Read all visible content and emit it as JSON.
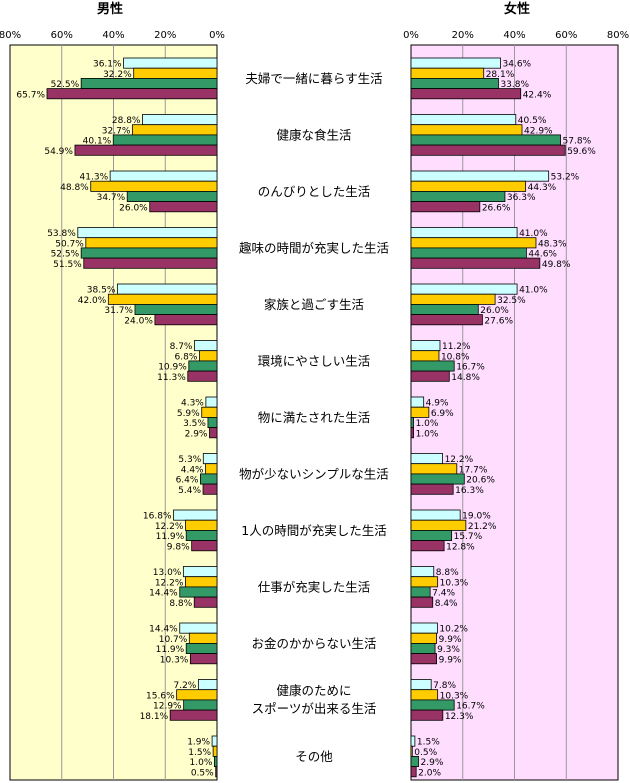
{
  "chart_data": {
    "type": "bar",
    "orientation": "horizontal-butterfly",
    "panels": [
      "男性",
      "女性"
    ],
    "xlim": [
      0,
      80
    ],
    "ticks": [
      "80%",
      "60%",
      "40%",
      "20%",
      "0%"
    ],
    "ticks_right": [
      "0%",
      "20%",
      "40%",
      "60%",
      "80%"
    ],
    "series_colors": [
      "#ccffff",
      "#ffcc00",
      "#339966",
      "#993366"
    ],
    "categories": [
      "夫婦で一緒に暮らす生活",
      "健康な食生活",
      "のんびりとした生活",
      "趣味の時間が充実した生活",
      "家族と過ごす生活",
      "環境にやさしい生活",
      "物に満たされた生活",
      "物が少ないシンプルな生活",
      "1人の時間が充実した生活",
      "仕事が充実した生活",
      "お金のかからない生活",
      "健康のために\nスポーツが出来る生活",
      "その他"
    ],
    "male": [
      [
        36.1,
        32.2,
        52.5,
        65.7
      ],
      [
        28.8,
        32.7,
        40.1,
        54.9
      ],
      [
        41.3,
        48.8,
        34.7,
        26.0
      ],
      [
        53.8,
        50.7,
        52.5,
        51.5
      ],
      [
        38.5,
        42.0,
        31.7,
        24.0
      ],
      [
        8.7,
        6.8,
        10.9,
        11.3
      ],
      [
        4.3,
        5.9,
        3.5,
        2.9
      ],
      [
        5.3,
        4.4,
        6.4,
        5.4
      ],
      [
        16.8,
        12.2,
        11.9,
        9.8
      ],
      [
        13.0,
        12.2,
        14.4,
        8.8
      ],
      [
        14.4,
        10.7,
        11.9,
        10.3
      ],
      [
        7.2,
        15.6,
        12.9,
        18.1
      ],
      [
        1.9,
        1.5,
        1.0,
        0.5
      ]
    ],
    "female": [
      [
        34.6,
        28.1,
        33.8,
        42.4
      ],
      [
        40.5,
        42.9,
        57.8,
        59.6
      ],
      [
        53.2,
        44.3,
        36.3,
        26.6
      ],
      [
        41.0,
        48.3,
        44.6,
        49.8
      ],
      [
        41.0,
        32.5,
        26.0,
        27.6
      ],
      [
        11.2,
        10.8,
        16.7,
        14.8
      ],
      [
        4.9,
        6.9,
        1.0,
        1.0
      ],
      [
        12.2,
        17.7,
        20.6,
        16.3
      ],
      [
        19.0,
        21.2,
        15.7,
        12.8
      ],
      [
        8.8,
        10.3,
        7.4,
        8.4
      ],
      [
        10.2,
        9.9,
        9.3,
        9.9
      ],
      [
        7.8,
        10.3,
        16.7,
        12.3
      ],
      [
        1.5,
        0.5,
        2.9,
        2.0
      ]
    ],
    "male_bg": "#ffffcc",
    "female_bg": "#ffddff"
  }
}
